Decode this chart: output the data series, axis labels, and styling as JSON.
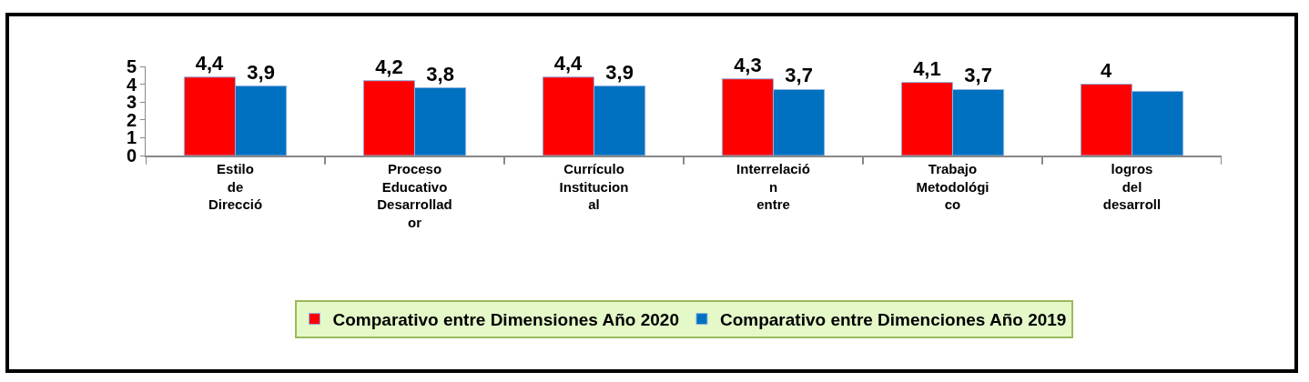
{
  "chart_data": {
    "type": "bar",
    "categories": [
      "Estilo\nde\nDirecció",
      "Proceso\nEducativo\nDesarrollad\nor",
      "Currículo\nInstitucion\nal",
      "Interrelació\nn\nentre",
      "Trabajo\nMetodológi\nco",
      "logros\ndel\ndesarroll"
    ],
    "series": [
      {
        "name": "Comparativo entre Dimensiones Año 2020",
        "color": "#ff0000",
        "values": [
          4.4,
          4.2,
          4.4,
          4.3,
          4.1,
          4
        ],
        "value_labels": [
          "4,4",
          "4,2",
          "4,4",
          "4,3",
          "4,1",
          "4"
        ]
      },
      {
        "name": "Comparativo entre Dimenciones Año 2019",
        "color": "#0070c0",
        "values": [
          3.9,
          3.8,
          3.9,
          3.7,
          3.7,
          3.6
        ],
        "value_labels": [
          "3,9",
          "3,8",
          "3,9",
          "3,7",
          "3,7",
          null
        ]
      }
    ],
    "ylim": [
      0,
      5
    ],
    "yticks": [
      0,
      1,
      2,
      3,
      4,
      5
    ],
    "grid": false,
    "legend": "bottom"
  }
}
